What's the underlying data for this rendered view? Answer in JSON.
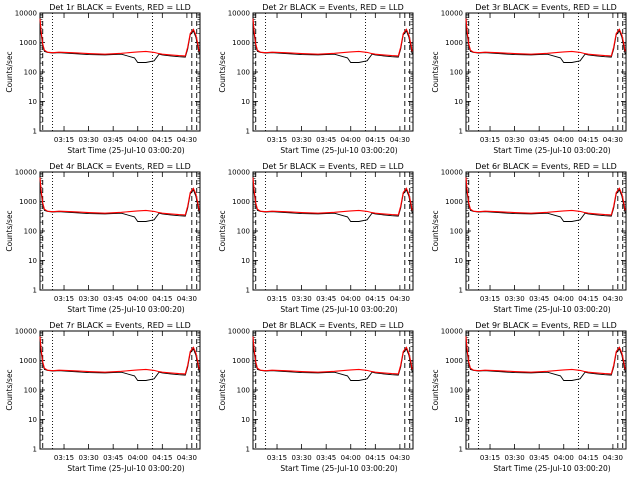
{
  "figure": {
    "panels": [
      {
        "title": "Det 1r BLACK = Events, RED = LLD",
        "xlabel": "Start Time (25-Jul-10 03:00:20)",
        "ylabel": "Counts/sec"
      },
      {
        "title": "Det 2r BLACK = Events, RED = LLD",
        "xlabel": "Start Time (25-Jul-10 03:00:20)",
        "ylabel": "Counts/sec"
      },
      {
        "title": "Det 3r BLACK = Events, RED = LLD",
        "xlabel": "Start Time (25-Jul-10 03:00:20)",
        "ylabel": "Counts/sec"
      },
      {
        "title": "Det 4r BLACK = Events, RED = LLD",
        "xlabel": "Start Time (25-Jul-10 03:00:20)",
        "ylabel": "Counts/sec"
      },
      {
        "title": "Det 5r BLACK = Events, RED = LLD",
        "xlabel": "Start Time (25-Jul-10 03:00:20)",
        "ylabel": "Counts/sec"
      },
      {
        "title": "Det 6r BLACK = Events, RED = LLD",
        "xlabel": "Start Time (25-Jul-10 03:00:20)",
        "ylabel": "Counts/sec"
      },
      {
        "title": "Det 7r BLACK = Events, RED = LLD",
        "xlabel": "Start Time (25-Jul-10 03:00:20)",
        "ylabel": "Counts/sec"
      },
      {
        "title": "Det 8r BLACK = Events, RED = LLD",
        "xlabel": "Start Time (25-Jul-10 03:00:20)",
        "ylabel": "Counts/sec"
      },
      {
        "title": "Det 9r BLACK = Events, RED = LLD",
        "xlabel": "Start Time (25-Jul-10 03:00:20)",
        "ylabel": "Counts/sec"
      }
    ],
    "colors": {
      "events": "#000000",
      "lld": "#ff0000",
      "axes": "#000000",
      "background": "#ffffff"
    }
  },
  "chart_data": {
    "type": "line",
    "layout": "3x3 grid",
    "x_unit": "time of day (25-Jul-10)",
    "xlim": [
      "03:00:20",
      "04:38:00"
    ],
    "xticks": [
      "03:15",
      "03:30",
      "03:45",
      "04:00",
      "04:15",
      "04:30"
    ],
    "yscale": "log",
    "ylim": [
      1,
      10000
    ],
    "yticks": [
      "1",
      "10",
      "100",
      "1000",
      "10000"
    ],
    "grid": false,
    "legend": "none",
    "x": [
      "03:00:20",
      "03:01:00",
      "03:02:00",
      "03:03:00",
      "03:05:00",
      "03:08:00",
      "03:12:00",
      "03:20:00",
      "03:30:00",
      "03:40:00",
      "03:50:00",
      "03:58:00",
      "04:00:00",
      "04:05:00",
      "04:10:00",
      "04:13:00",
      "04:15:00",
      "04:20:00",
      "04:25:00",
      "04:29:00",
      "04:30:30",
      "04:32:00",
      "04:34:00",
      "04:35:30",
      "04:36:30",
      "04:37:30"
    ],
    "series": [
      {
        "name": "Events",
        "values": [
          6000,
          2000,
          800,
          500,
          460,
          440,
          450,
          420,
          390,
          380,
          400,
          300,
          210,
          210,
          240,
          400,
          380,
          350,
          330,
          320,
          600,
          1800,
          2500,
          1500,
          800,
          400
        ]
      },
      {
        "name": "LLD",
        "values": [
          6500,
          2500,
          900,
          550,
          470,
          450,
          470,
          450,
          420,
          400,
          430,
          470,
          480,
          500,
          460,
          420,
          400,
          380,
          360,
          350,
          700,
          2000,
          2800,
          1800,
          1000,
          500
        ]
      }
    ],
    "markers": {
      "dashed_vertical": [
        "03:02:00",
        "04:33:00",
        "04:36:00"
      ],
      "dotted_vertical": [
        "03:08:00",
        "04:09:00"
      ]
    }
  }
}
